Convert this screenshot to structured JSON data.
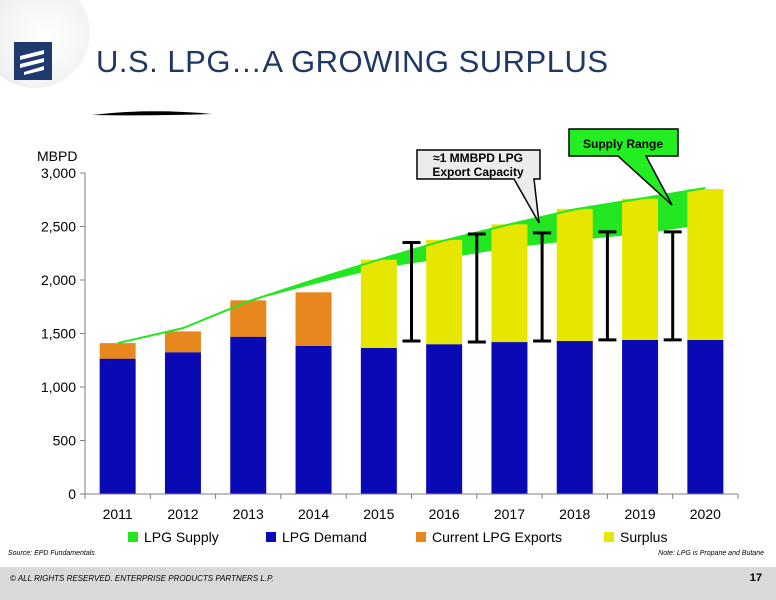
{
  "slide": {
    "title": "U.S. LPG…A GROWING SURPLUS",
    "source": "Source:  EPD Fundamentals",
    "note": "Note:  LPG is Propane and Butane",
    "copyright": "© ALL RIGHTS RESERVED. ENTERPRISE PRODUCTS PARTNERS L.P.",
    "page_number": "17"
  },
  "chart_data": {
    "type": "bar",
    "stacked": true,
    "ylabel": "MBPD",
    "ylim": [
      0,
      3000
    ],
    "yticks": [
      "0",
      "500",
      "1,000",
      "1,500",
      "2,000",
      "2,500",
      "3,000"
    ],
    "ytick_values": [
      0,
      500,
      1000,
      1500,
      2000,
      2500,
      3000
    ],
    "categories": [
      "2011",
      "2012",
      "2013",
      "2014",
      "2015",
      "2016",
      "2017",
      "2018",
      "2019",
      "2020"
    ],
    "series": [
      {
        "name": "LPG Demand",
        "color": "#0a0ab4",
        "values": [
          1265,
          1325,
          1470,
          1385,
          1365,
          1400,
          1420,
          1430,
          1440,
          1440
        ]
      },
      {
        "name": "Current LPG Exports",
        "color": "#e8871e",
        "values": [
          145,
          195,
          340,
          500,
          null,
          null,
          null,
          null,
          null,
          null
        ]
      },
      {
        "name": "Surplus",
        "color": "#e6e600",
        "values": [
          null,
          null,
          null,
          null,
          825,
          975,
          1100,
          1235,
          1320,
          1410
        ]
      }
    ],
    "lpg_supply": {
      "name": "LPG Supply",
      "color": "#22e622",
      "values": [
        1410,
        1550,
        1800,
        2000,
        2190,
        2370,
        2520,
        2660,
        2760,
        2860
      ]
    },
    "supply_range_low": [
      1410,
      1550,
      1800,
      1960,
      2110,
      2200,
      2300,
      2370,
      2430,
      2520
    ],
    "error_bars": [
      {
        "between": [
          "2015",
          "2016"
        ],
        "low": 1430,
        "high": 2350
      },
      {
        "between": [
          "2016",
          "2017"
        ],
        "low": 1420,
        "high": 2430
      },
      {
        "between": [
          "2017",
          "2018"
        ],
        "low": 1430,
        "high": 2440
      },
      {
        "between": [
          "2018",
          "2019"
        ],
        "low": 1440,
        "high": 2450
      },
      {
        "between": [
          "2019",
          "2020"
        ],
        "low": 1440,
        "high": 2450
      }
    ],
    "legend": [
      "LPG Supply",
      "LPG Demand",
      "Current LPG Exports",
      "Surplus"
    ],
    "legend_position": "bottom",
    "annotations": [
      {
        "text": "≈1 MMBPD LPG Export Capacity",
        "line1": "≈1 MMBPD LPG",
        "line2": "Export Capacity"
      },
      {
        "text": "Supply Range"
      }
    ],
    "grid": false
  }
}
